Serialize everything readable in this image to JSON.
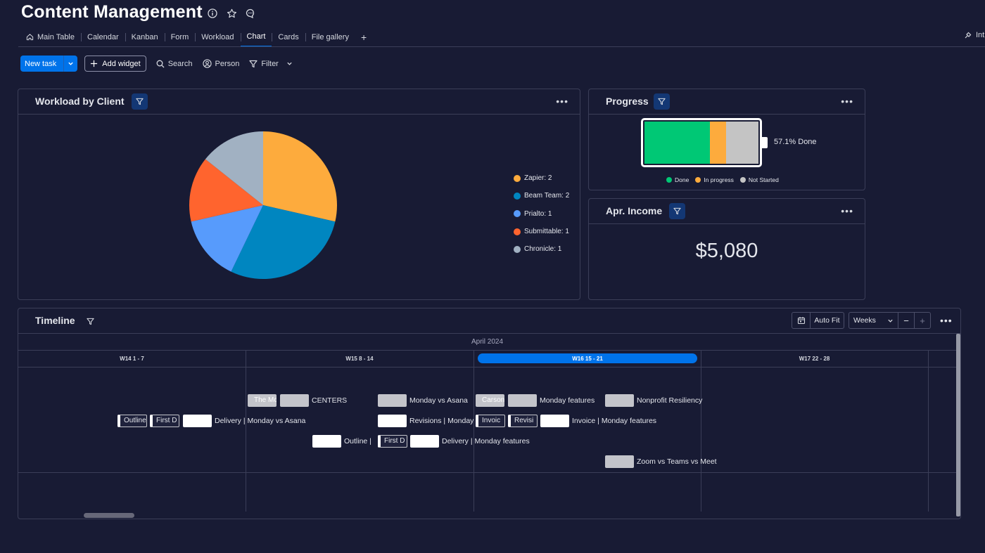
{
  "page_title": "Content Management",
  "title_icons": [
    "info-icon",
    "star-icon",
    "comment-icon"
  ],
  "tabs": [
    {
      "label": "Main Table",
      "icon": "home-icon",
      "active": false
    },
    {
      "label": "Calendar",
      "active": false
    },
    {
      "label": "Kanban",
      "active": false
    },
    {
      "label": "Form",
      "active": false
    },
    {
      "label": "Workload",
      "active": false
    },
    {
      "label": "Chart",
      "active": true
    },
    {
      "label": "Cards",
      "active": false
    },
    {
      "label": "File gallery",
      "active": false
    }
  ],
  "tab_add_label": "+",
  "integrate_label": "Int",
  "toolbar": {
    "new_task": "New task",
    "add_widget": "Add widget",
    "search": "Search",
    "person": "Person",
    "filter": "Filter"
  },
  "workload": {
    "title": "Workload by Client",
    "legend": [
      {
        "label": "Zapier: 2",
        "color": "#fdab3d"
      },
      {
        "label": "Beam Team: 2",
        "color": "#0086c0"
      },
      {
        "label": "Prialto: 1",
        "color": "#579bfc"
      },
      {
        "label": "Submittable: 1",
        "color": "#ff642e"
      },
      {
        "label": "Chronicle: 1",
        "color": "#a1b1c2"
      }
    ]
  },
  "chart_data": {
    "type": "pie",
    "title": "Workload by Client",
    "categories": [
      "Zapier",
      "Beam Team",
      "Prialto",
      "Submittable",
      "Chronicle"
    ],
    "values": [
      2,
      2,
      1,
      1,
      1
    ],
    "colors": [
      "#fdab3d",
      "#0086c0",
      "#579bfc",
      "#ff642e",
      "#a1b1c2"
    ],
    "legend_position": "right"
  },
  "progress": {
    "title": "Progress",
    "done_label": "57.1% Done",
    "fractions": {
      "done": 0.571,
      "in_progress": 0.143,
      "not_started": 0.286
    },
    "colors": {
      "done": "#00c875",
      "in_progress": "#fdab3d",
      "not_started": "#c4c4c4"
    },
    "legend": [
      {
        "label": "Done",
        "color": "#00c875"
      },
      {
        "label": "In progress",
        "color": "#fdab3d"
      },
      {
        "label": "Not Started",
        "color": "#c4c4c4"
      }
    ]
  },
  "income": {
    "title": "Apr. Income",
    "value": "$5,080"
  },
  "timeline": {
    "title": "Timeline",
    "auto_fit": "Auto Fit",
    "scale": "Weeks",
    "zoom_out": "−",
    "zoom_in": "+",
    "month": "April 2024",
    "weeks": [
      "W14 1 - 7",
      "W15 8 - 14",
      "W16 15 - 21",
      "W17 22 - 28"
    ],
    "current_week": "W16 15 - 21",
    "chips": [
      {
        "text": "The Mo",
        "style": "grey"
      },
      {
        "text": "",
        "style": "grey"
      },
      {
        "text": "",
        "style": "grey"
      },
      {
        "text": "Carson",
        "style": "grey"
      },
      {
        "text": "",
        "style": "grey"
      },
      {
        "text": "",
        "style": "grey"
      },
      {
        "text": "Outline",
        "style": "dark"
      },
      {
        "text": "First D",
        "style": "dark"
      },
      {
        "text": "",
        "style": "white"
      },
      {
        "text": "",
        "style": "white"
      },
      {
        "text": "Invoic",
        "style": "dark"
      },
      {
        "text": "Revisi",
        "style": "dark"
      },
      {
        "text": "",
        "style": "white"
      },
      {
        "text": "",
        "style": "white"
      },
      {
        "text": "First D",
        "style": "dark"
      },
      {
        "text": "",
        "style": "white"
      },
      {
        "text": "",
        "style": "grey"
      }
    ],
    "labels": [
      "CENTERS",
      "Monday vs Asana",
      "Monday features",
      "Nonprofit Resiliency",
      "Delivery | Monday vs Asana",
      "Revisions | Monday",
      "Invoice | Monday features",
      "Outline |",
      "Delivery | Monday features",
      "Zoom vs Teams vs Meet"
    ]
  }
}
